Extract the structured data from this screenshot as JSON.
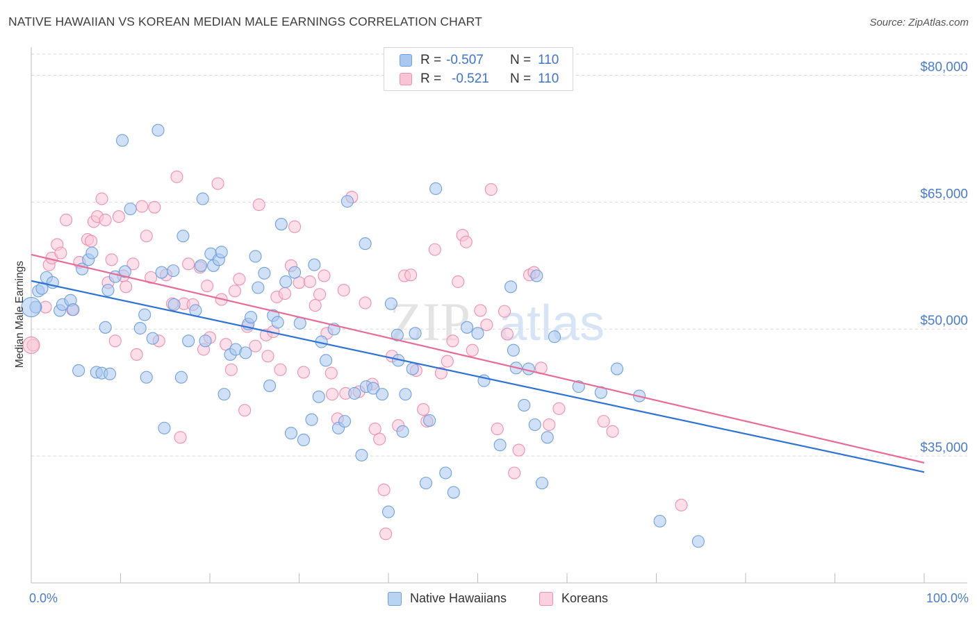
{
  "title": "NATIVE HAWAIIAN VS KOREAN MEDIAN MALE EARNINGS CORRELATION CHART",
  "source": "Source: ZipAtlas.com",
  "watermark": {
    "zip": "ZIP",
    "atlas": "atlas"
  },
  "stats": [
    {
      "r_label": "R =",
      "r_value": "-0.507",
      "n_label": "N =",
      "n_value": "110",
      "color": "#a9c8f0",
      "border": "#6f9fe0"
    },
    {
      "r_label": "R =",
      "r_value": "-0.521",
      "n_label": "N =",
      "n_value": "110",
      "color": "#f9c4d6",
      "border": "#ef8fae"
    }
  ],
  "legend": [
    {
      "label": "Native Hawaiians",
      "color": "#b9d3f3",
      "border": "#6f9fe0"
    },
    {
      "label": "Koreans",
      "color": "#fbd0df",
      "border": "#ef8fae"
    }
  ],
  "colors": {
    "blue_line": "#2f72d6",
    "pink_line": "#e86b97",
    "blue_fill": "#a9c8f0",
    "pink_fill": "#f9c4d6",
    "tick": "#4a7cc9",
    "grid": "#d9d9d9"
  },
  "chart_data": {
    "type": "scatter",
    "xlabel": "",
    "ylabel": "Median Male Earnings",
    "x_ticks": [
      "0.0%",
      "100.0%"
    ],
    "y_ticks": [
      "$80,000",
      "$65,000",
      "$50,000",
      "$35,000"
    ],
    "xlim": [
      0,
      100
    ],
    "ylim": [
      20000,
      82500
    ],
    "y_tick_values": [
      80000,
      65000,
      50000,
      35000
    ],
    "grid": "horizontal-dashed",
    "legend_position": "bottom-center",
    "series": [
      {
        "name": "Native Hawaiians",
        "trend": {
          "x": [
            0,
            100
          ],
          "y": [
            55700,
            33100
          ]
        },
        "points": [
          [
            0.5,
            52600
          ],
          [
            0.8,
            54500
          ],
          [
            1.2,
            54800
          ],
          [
            1.7,
            56100
          ],
          [
            2.4,
            55500
          ],
          [
            3.2,
            52200
          ],
          [
            3.5,
            52900
          ],
          [
            4.4,
            53400
          ],
          [
            4.7,
            52300
          ],
          [
            5.3,
            45100
          ],
          [
            5.7,
            57100
          ],
          [
            6.4,
            58200
          ],
          [
            6.8,
            59000
          ],
          [
            7.3,
            44900
          ],
          [
            7.9,
            44800
          ],
          [
            8.3,
            50200
          ],
          [
            8.6,
            54600
          ],
          [
            8.8,
            44700
          ],
          [
            9.4,
            56200
          ],
          [
            10.2,
            72300
          ],
          [
            10.5,
            56800
          ],
          [
            11.1,
            64200
          ],
          [
            12.2,
            50100
          ],
          [
            12.7,
            51700
          ],
          [
            12.9,
            44300
          ],
          [
            13.6,
            48900
          ],
          [
            14.2,
            73500
          ],
          [
            14.6,
            56700
          ],
          [
            14.9,
            38300
          ],
          [
            15.9,
            56900
          ],
          [
            16.0,
            52900
          ],
          [
            16.8,
            44300
          ],
          [
            17.0,
            61000
          ],
          [
            17.6,
            48600
          ],
          [
            18.4,
            52200
          ],
          [
            19.0,
            57500
          ],
          [
            19.2,
            65400
          ],
          [
            19.5,
            48600
          ],
          [
            20.1,
            58900
          ],
          [
            20.4,
            57500
          ],
          [
            21.0,
            58200
          ],
          [
            21.3,
            59100
          ],
          [
            21.6,
            42300
          ],
          [
            22.3,
            47000
          ],
          [
            22.9,
            47600
          ],
          [
            24.0,
            47200
          ],
          [
            24.3,
            50600
          ],
          [
            24.6,
            51400
          ],
          [
            25.1,
            58600
          ],
          [
            25.4,
            54900
          ],
          [
            26.1,
            56600
          ],
          [
            26.7,
            43300
          ],
          [
            27.1,
            51600
          ],
          [
            27.6,
            50800
          ],
          [
            28.0,
            62400
          ],
          [
            28.5,
            55600
          ],
          [
            29.1,
            37700
          ],
          [
            29.5,
            56700
          ],
          [
            30.1,
            50700
          ],
          [
            30.5,
            36900
          ],
          [
            31.4,
            39300
          ],
          [
            31.7,
            57600
          ],
          [
            32.2,
            42000
          ],
          [
            32.5,
            48500
          ],
          [
            33.0,
            46300
          ],
          [
            33.9,
            50000
          ],
          [
            34.4,
            38300
          ],
          [
            35.1,
            39100
          ],
          [
            35.4,
            65100
          ],
          [
            36.2,
            42400
          ],
          [
            37.0,
            35100
          ],
          [
            37.4,
            60100
          ],
          [
            37.5,
            43200
          ],
          [
            38.3,
            43000
          ],
          [
            39.3,
            42300
          ],
          [
            40.0,
            28400
          ],
          [
            40.3,
            53000
          ],
          [
            41.0,
            49300
          ],
          [
            41.1,
            46300
          ],
          [
            41.6,
            37900
          ],
          [
            41.9,
            42300
          ],
          [
            42.7,
            45300
          ],
          [
            43.0,
            49500
          ],
          [
            44.2,
            31800
          ],
          [
            44.6,
            39200
          ],
          [
            45.3,
            66600
          ],
          [
            46.4,
            33000
          ],
          [
            47.3,
            30700
          ],
          [
            48.8,
            50200
          ],
          [
            50.0,
            49500
          ],
          [
            50.7,
            43900
          ],
          [
            52.5,
            36300
          ],
          [
            53.7,
            55000
          ],
          [
            54.0,
            47500
          ],
          [
            54.3,
            45400
          ],
          [
            55.2,
            41000
          ],
          [
            55.7,
            45300
          ],
          [
            56.4,
            38700
          ],
          [
            56.6,
            56300
          ],
          [
            57.2,
            31800
          ],
          [
            57.8,
            37200
          ],
          [
            58.6,
            49100
          ],
          [
            61.3,
            43200
          ],
          [
            63.8,
            42500
          ],
          [
            65.6,
            45300
          ],
          [
            68.1,
            42100
          ],
          [
            70.4,
            27300
          ],
          [
            74.7,
            24900
          ]
        ]
      },
      {
        "name": "Koreans",
        "trend": {
          "x": [
            0,
            100
          ],
          "y": [
            58800,
            34200
          ]
        },
        "points": [
          [
            0.2,
            48100
          ],
          [
            1.6,
            52600
          ],
          [
            2.0,
            57600
          ],
          [
            2.3,
            58400
          ],
          [
            2.9,
            60000
          ],
          [
            3.3,
            59000
          ],
          [
            3.9,
            62900
          ],
          [
            4.6,
            52300
          ],
          [
            5.4,
            57900
          ],
          [
            6.3,
            60600
          ],
          [
            6.7,
            60400
          ],
          [
            7.0,
            62700
          ],
          [
            7.4,
            63300
          ],
          [
            7.9,
            65400
          ],
          [
            8.3,
            62900
          ],
          [
            8.6,
            55500
          ],
          [
            9.0,
            58200
          ],
          [
            9.4,
            48600
          ],
          [
            9.8,
            63300
          ],
          [
            10.3,
            56300
          ],
          [
            10.6,
            55000
          ],
          [
            11.4,
            57700
          ],
          [
            11.8,
            47000
          ],
          [
            12.4,
            64500
          ],
          [
            12.9,
            61000
          ],
          [
            13.4,
            56100
          ],
          [
            13.8,
            64400
          ],
          [
            14.3,
            48600
          ],
          [
            15.1,
            56400
          ],
          [
            15.8,
            53000
          ],
          [
            16.3,
            68000
          ],
          [
            16.7,
            37200
          ],
          [
            17.1,
            53000
          ],
          [
            17.6,
            57700
          ],
          [
            18.1,
            52900
          ],
          [
            18.9,
            57300
          ],
          [
            19.3,
            47600
          ],
          [
            19.7,
            55100
          ],
          [
            20.0,
            49000
          ],
          [
            20.9,
            67200
          ],
          [
            21.3,
            53500
          ],
          [
            21.8,
            48200
          ],
          [
            22.4,
            45200
          ],
          [
            22.8,
            54500
          ],
          [
            23.3,
            55900
          ],
          [
            23.9,
            40400
          ],
          [
            24.2,
            50300
          ],
          [
            25.1,
            48000
          ],
          [
            25.5,
            64700
          ],
          [
            26.3,
            49300
          ],
          [
            26.5,
            46800
          ],
          [
            27.1,
            49700
          ],
          [
            27.5,
            53800
          ],
          [
            27.9,
            45200
          ],
          [
            28.4,
            54200
          ],
          [
            29.1,
            57500
          ],
          [
            29.5,
            62100
          ],
          [
            30.0,
            55500
          ],
          [
            30.5,
            44900
          ],
          [
            31.2,
            55600
          ],
          [
            31.8,
            52800
          ],
          [
            32.3,
            54100
          ],
          [
            32.8,
            56300
          ],
          [
            33.1,
            49500
          ],
          [
            33.6,
            44800
          ],
          [
            34.3,
            39400
          ],
          [
            35.0,
            54600
          ],
          [
            35.2,
            42400
          ],
          [
            35.9,
            65600
          ],
          [
            36.7,
            42600
          ],
          [
            37.4,
            53100
          ],
          [
            38.2,
            43500
          ],
          [
            38.5,
            38200
          ],
          [
            39.0,
            37000
          ],
          [
            39.5,
            31000
          ],
          [
            39.7,
            25800
          ],
          [
            40.4,
            46800
          ],
          [
            41.1,
            38600
          ],
          [
            41.8,
            56300
          ],
          [
            42.5,
            56400
          ],
          [
            43.1,
            45100
          ],
          [
            43.9,
            40500
          ],
          [
            44.3,
            39100
          ],
          [
            45.2,
            59400
          ],
          [
            45.9,
            44800
          ],
          [
            46.6,
            46200
          ],
          [
            47.2,
            48600
          ],
          [
            47.8,
            55600
          ],
          [
            48.3,
            61100
          ],
          [
            48.7,
            60300
          ],
          [
            49.4,
            47500
          ],
          [
            50.3,
            52200
          ],
          [
            51.0,
            50500
          ],
          [
            51.5,
            66500
          ],
          [
            52.2,
            38200
          ],
          [
            53.0,
            52100
          ],
          [
            53.3,
            49400
          ],
          [
            54.1,
            33000
          ],
          [
            54.6,
            35700
          ],
          [
            55.8,
            56400
          ],
          [
            56.3,
            56700
          ],
          [
            57.1,
            45400
          ],
          [
            58.0,
            38700
          ],
          [
            59.1,
            40600
          ],
          [
            64.1,
            39100
          ],
          [
            65.1,
            37900
          ],
          [
            72.8,
            29200
          ],
          [
            33.7,
            42300
          ]
        ]
      }
    ]
  }
}
